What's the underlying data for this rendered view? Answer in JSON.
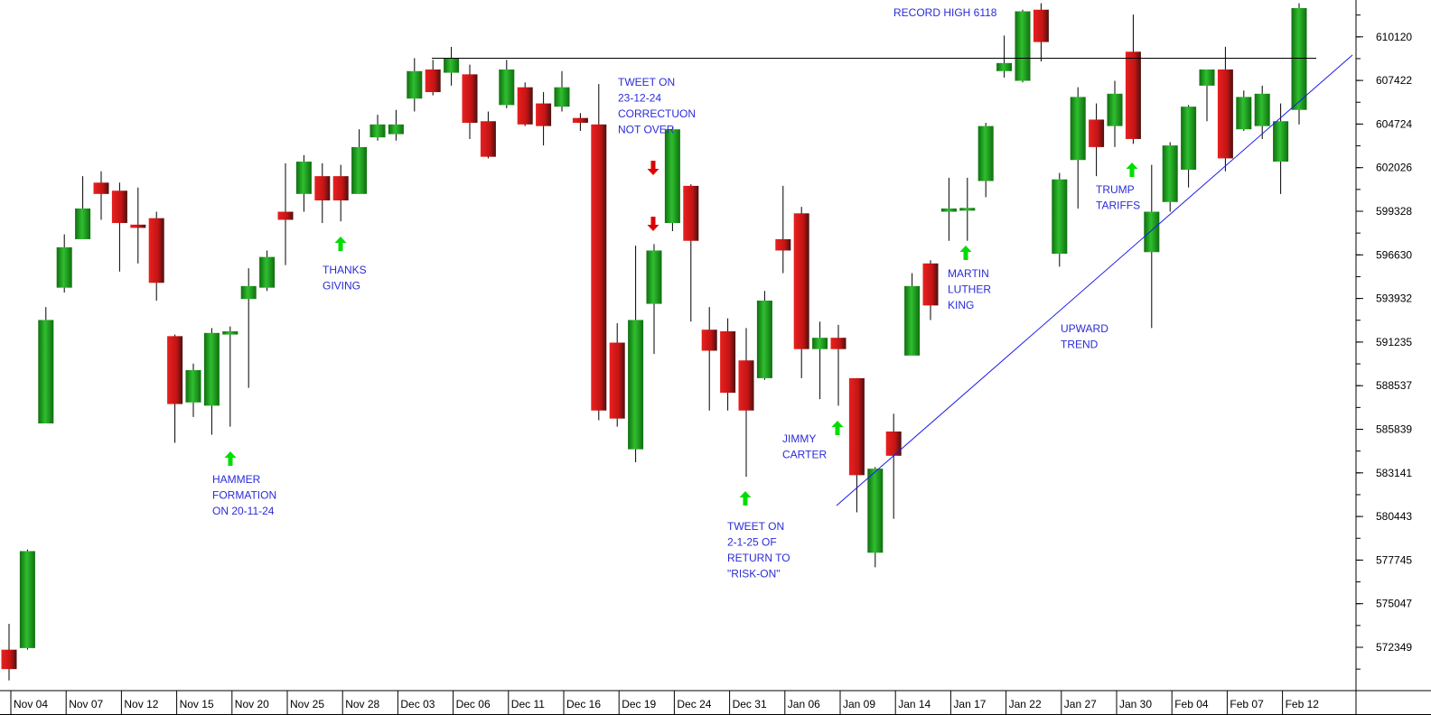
{
  "chart_data": {
    "type": "candlestick",
    "title": "",
    "xlabel": "",
    "ylabel": "",
    "ylim": [
      570500,
      612400
    ],
    "grid": false,
    "colors": {
      "up": "#1f9e1f",
      "down": "#e01b1b",
      "annotation": "#2b2bd9",
      "arrow_up": "#00dd00",
      "arrow_down": "#dd0000",
      "trendline": "#1a1aee",
      "resistance": "#000000"
    },
    "y_ticks": [
      572349,
      575047,
      577745,
      580443,
      583141,
      585839,
      588537,
      591235,
      593932,
      596630,
      599328,
      602026,
      604724,
      607422,
      610120
    ],
    "x_tick_labels": [
      "Nov 04",
      "Nov 07",
      "Nov 12",
      "Nov 15",
      "Nov 20",
      "Nov 25",
      "Nov 28",
      "Dec 03",
      "Dec 06",
      "Dec 11",
      "Dec 16",
      "Dec 19",
      "Dec 24",
      "Dec 31",
      "Jan 06",
      "Jan 09",
      "Jan 14",
      "Jan 17",
      "Jan 22",
      "Jan 27",
      "Jan 30",
      "Feb 04",
      "Feb 07",
      "Feb 12"
    ],
    "candles": [
      {
        "o": 572200,
        "h": 573800,
        "l": 570300,
        "c": 571000
      },
      {
        "o": 572300,
        "h": 578400,
        "l": 572200,
        "c": 578300
      },
      {
        "o": 586200,
        "h": 593400,
        "l": 586200,
        "c": 592600
      },
      {
        "o": 594600,
        "h": 597900,
        "l": 594300,
        "c": 597100
      },
      {
        "o": 597600,
        "h": 601500,
        "l": 597600,
        "c": 599500
      },
      {
        "o": 601100,
        "h": 601800,
        "l": 598800,
        "c": 600400
      },
      {
        "o": 600600,
        "h": 601100,
        "l": 595600,
        "c": 598600
      },
      {
        "o": 598500,
        "h": 600800,
        "l": 596100,
        "c": 598300
      },
      {
        "o": 598900,
        "h": 599300,
        "l": 593800,
        "c": 594900
      },
      {
        "o": 591600,
        "h": 591700,
        "l": 585000,
        "c": 587400
      },
      {
        "o": 587500,
        "h": 589900,
        "l": 586600,
        "c": 589500
      },
      {
        "o": 587300,
        "h": 592100,
        "l": 585500,
        "c": 591800
      },
      {
        "o": 591700,
        "h": 592200,
        "l": 586000,
        "c": 591900
      },
      {
        "o": 593900,
        "h": 595800,
        "l": 588400,
        "c": 594700
      },
      {
        "o": 594600,
        "h": 596900,
        "l": 594400,
        "c": 596500
      },
      {
        "o": 599300,
        "h": 602300,
        "l": 596000,
        "c": 598800
      },
      {
        "o": 600400,
        "h": 602800,
        "l": 599300,
        "c": 602400
      },
      {
        "o": 601500,
        "h": 602300,
        "l": 598600,
        "c": 600000
      },
      {
        "o": 601500,
        "h": 602200,
        "l": 598700,
        "c": 600000
      },
      {
        "o": 600400,
        "h": 604400,
        "l": 600400,
        "c": 603300
      },
      {
        "o": 603900,
        "h": 605300,
        "l": 603700,
        "c": 604700
      },
      {
        "o": 604100,
        "h": 605600,
        "l": 603700,
        "c": 604700
      },
      {
        "o": 606300,
        "h": 608800,
        "l": 605500,
        "c": 608000
      },
      {
        "o": 608100,
        "h": 608700,
        "l": 606500,
        "c": 606700
      },
      {
        "o": 607900,
        "h": 609500,
        "l": 607100,
        "c": 608800
      },
      {
        "o": 607800,
        "h": 608400,
        "l": 603800,
        "c": 604800
      },
      {
        "o": 604900,
        "h": 605500,
        "l": 602600,
        "c": 602700
      },
      {
        "o": 605900,
        "h": 608700,
        "l": 605700,
        "c": 608100
      },
      {
        "o": 607000,
        "h": 607300,
        "l": 604600,
        "c": 604700
      },
      {
        "o": 606000,
        "h": 606700,
        "l": 603400,
        "c": 604600
      },
      {
        "o": 605800,
        "h": 608000,
        "l": 605500,
        "c": 607000
      },
      {
        "o": 605100,
        "h": 605400,
        "l": 604300,
        "c": 604800
      },
      {
        "o": 604700,
        "h": 607200,
        "l": 586400,
        "c": 587000
      },
      {
        "o": 591200,
        "h": 592400,
        "l": 586000,
        "c": 586500
      },
      {
        "o": 584600,
        "h": 597200,
        "l": 583800,
        "c": 592600
      },
      {
        "o": 593600,
        "h": 597300,
        "l": 590500,
        "c": 596900
      },
      {
        "o": 598600,
        "h": 604500,
        "l": 598100,
        "c": 604400
      },
      {
        "o": 600900,
        "h": 601000,
        "l": 592500,
        "c": 597500
      },
      {
        "o": 592000,
        "h": 593400,
        "l": 587000,
        "c": 590700
      },
      {
        "o": 591900,
        "h": 592700,
        "l": 587000,
        "c": 588100
      },
      {
        "o": 590100,
        "h": 592100,
        "l": 582900,
        "c": 587000
      },
      {
        "o": 589000,
        "h": 594400,
        "l": 588900,
        "c": 593800
      },
      {
        "o": 597600,
        "h": 600900,
        "l": 595500,
        "c": 596900
      },
      {
        "o": 599200,
        "h": 599600,
        "l": 589000,
        "c": 590800
      },
      {
        "o": 590800,
        "h": 592500,
        "l": 587700,
        "c": 591500
      },
      {
        "o": 591500,
        "h": 592300,
        "l": 587300,
        "c": 590800
      },
      {
        "o": 589000,
        "h": 589000,
        "l": 580700,
        "c": 583000
      },
      {
        "o": 578200,
        "h": 583500,
        "l": 577300,
        "c": 583400
      },
      {
        "o": 585700,
        "h": 586800,
        "l": 580300,
        "c": 584200
      },
      {
        "o": 590400,
        "h": 595500,
        "l": 590400,
        "c": 594700
      },
      {
        "o": 596100,
        "h": 596300,
        "l": 592600,
        "c": 593500
      },
      {
        "o": 599300,
        "h": 601400,
        "l": 597500,
        "c": 599500
      },
      {
        "o": 599400,
        "h": 601400,
        "l": 597500,
        "c": 599500
      },
      {
        "o": 601200,
        "h": 604800,
        "l": 600200,
        "c": 604600
      },
      {
        "o": 608000,
        "h": 610200,
        "l": 607600,
        "c": 608500
      },
      {
        "o": 607400,
        "h": 611800,
        "l": 607300,
        "c": 611700
      },
      {
        "o": 611800,
        "h": 612200,
        "l": 608600,
        "c": 609800
      },
      {
        "o": 596700,
        "h": 601700,
        "l": 595900,
        "c": 601300
      },
      {
        "o": 602500,
        "h": 607000,
        "l": 599500,
        "c": 606400
      },
      {
        "o": 605000,
        "h": 606000,
        "l": 601500,
        "c": 603300
      },
      {
        "o": 604600,
        "h": 607400,
        "l": 603300,
        "c": 606600
      },
      {
        "o": 609200,
        "h": 611500,
        "l": 603500,
        "c": 603800
      },
      {
        "o": 596800,
        "h": 602200,
        "l": 592100,
        "c": 599300
      },
      {
        "o": 599900,
        "h": 603600,
        "l": 599300,
        "c": 603400
      },
      {
        "o": 601900,
        "h": 605900,
        "l": 600800,
        "c": 605800
      },
      {
        "o": 607100,
        "h": 608100,
        "l": 604900,
        "c": 608100
      },
      {
        "o": 608100,
        "h": 609500,
        "l": 601800,
        "c": 602600
      },
      {
        "o": 604400,
        "h": 606800,
        "l": 604300,
        "c": 606400
      },
      {
        "o": 604600,
        "h": 607100,
        "l": 603800,
        "c": 606600
      },
      {
        "o": 602400,
        "h": 606000,
        "l": 600400,
        "c": 604900
      },
      {
        "o": 605600,
        "h": 612200,
        "l": 604700,
        "c": 611900
      }
    ],
    "horizontal_line": 608800,
    "annotations": [
      {
        "lines": [
          "RECORD HIGH 6118"
        ]
      },
      {
        "lines": [
          "THANKS",
          "GIVING"
        ],
        "arrow": "up"
      },
      {
        "lines": [
          "HAMMER",
          "FORMATION",
          "ON 20-11-24"
        ],
        "arrow": "up"
      },
      {
        "lines": [
          "TWEET ON",
          "23-12-24",
          "CORRECTUON",
          "NOT OVER"
        ],
        "arrow": "down"
      },
      {
        "lines": [
          "TWEET ON",
          "2-1-25 OF",
          "RETURN TO",
          "\"RISK-ON\""
        ],
        "arrow": "up"
      },
      {
        "lines": [
          "JIMMY",
          "CARTER"
        ],
        "arrow": "up"
      },
      {
        "lines": [
          "MARTIN",
          "LUTHER",
          "KING"
        ],
        "arrow": "up"
      },
      {
        "lines": [
          "UPWARD",
          "TREND"
        ]
      },
      {
        "lines": [
          "TRUMP",
          "TARIFFS"
        ],
        "arrow": "up"
      }
    ]
  }
}
